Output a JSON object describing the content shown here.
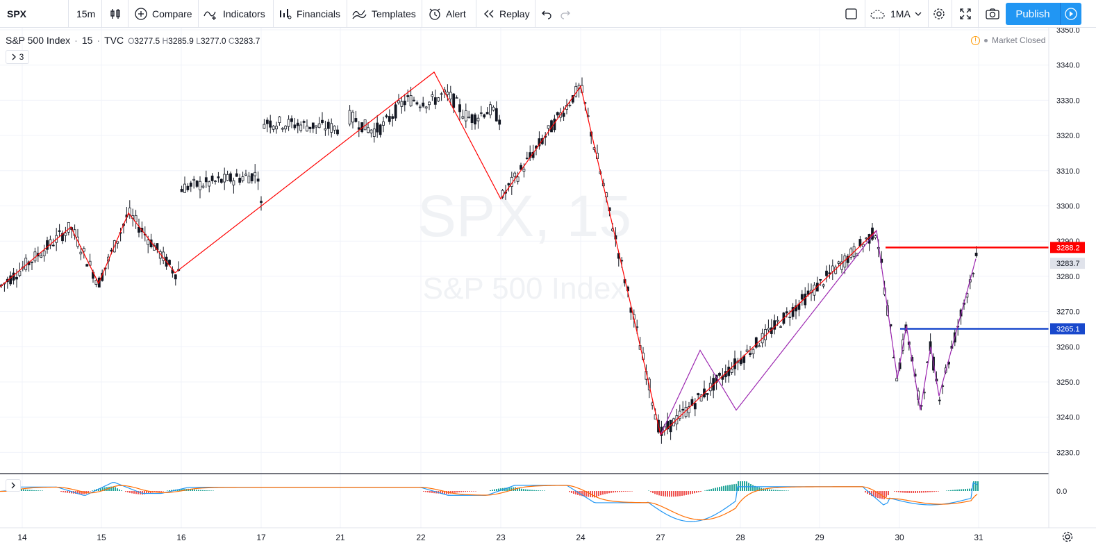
{
  "toolbar": {
    "symbol": "SPX",
    "interval": "15m",
    "compare": "Compare",
    "indicators": "Indicators",
    "financials": "Financials",
    "templates": "Templates",
    "alert": "Alert",
    "replay": "Replay",
    "layout_name": "1MA",
    "publish": "Publish"
  },
  "legend": {
    "name": "S&P 500 Index",
    "interval": "15",
    "exchange": "TVC",
    "open_label": "O",
    "open": "3277.5",
    "high_label": "H",
    "high": "3285.9",
    "low_label": "L",
    "low": "3277.0",
    "close_label": "C",
    "close": "3283.7",
    "indicator_count": "3"
  },
  "market_status": "Market Closed",
  "watermark": {
    "symbol": "SPX, 15",
    "name": "S&P 500 Index"
  },
  "colors": {
    "accent": "#2196f3",
    "zigzag": "#ff0000",
    "pattern": "#9c27b0",
    "line_resistance": "#ff0000",
    "line_support": "#1848cc",
    "macd": "#2196f3",
    "signal": "#ff6d00",
    "hist_pos": "#26a69a",
    "hist_neg": "#ef5350"
  },
  "chart_data": {
    "type": "candlestick",
    "price_axis": [
      "3350.0",
      "3340.0",
      "3330.0",
      "3320.0",
      "3310.0",
      "3300.0",
      "3290.0",
      "3280.0",
      "3270.0",
      "3260.0",
      "3250.0",
      "3240.0",
      "3230.0"
    ],
    "price_range": [
      3224,
      3351
    ],
    "time_axis": [
      "14",
      "15",
      "16",
      "17",
      "21",
      "22",
      "23",
      "24",
      "27",
      "28",
      "29",
      "30",
      "31"
    ],
    "price_labels": [
      {
        "value": "3288.2",
        "color": "#ff0000",
        "text_color": "#ffffff"
      },
      {
        "value": "3283.7",
        "color": "#e0e3eb",
        "text_color": "#131722"
      },
      {
        "value": "3265.1",
        "color": "#1848cc",
        "text_color": "#ffffff"
      }
    ],
    "horizontal_lines": [
      {
        "price": 3288.2,
        "from_x": 1275
      },
      {
        "price": 3265.1,
        "from_x": 1296
      }
    ],
    "zigzag": [
      [
        0,
        3277
      ],
      [
        102,
        3294
      ],
      [
        142,
        3278
      ],
      [
        185,
        3298
      ],
      [
        252,
        3281
      ],
      [
        625,
        3338
      ],
      [
        721,
        3302
      ],
      [
        836,
        3334
      ],
      [
        951,
        3235
      ],
      [
        1262,
        3293
      ],
      [
        1292,
        3251
      ],
      [
        1305,
        3266
      ],
      [
        1325,
        3242
      ],
      [
        1340,
        3260
      ],
      [
        1352,
        3246
      ],
      [
        1405,
        3285
      ]
    ],
    "pattern": [
      [
        951,
        3235
      ],
      [
        1008,
        3259
      ],
      [
        1060,
        3242
      ],
      [
        1262,
        3293
      ],
      [
        1292,
        3251
      ],
      [
        1305,
        3266
      ],
      [
        1325,
        3242
      ],
      [
        1340,
        3260
      ],
      [
        1352,
        3246
      ],
      [
        1405,
        3285
      ]
    ],
    "macd_axis": "0.0"
  }
}
